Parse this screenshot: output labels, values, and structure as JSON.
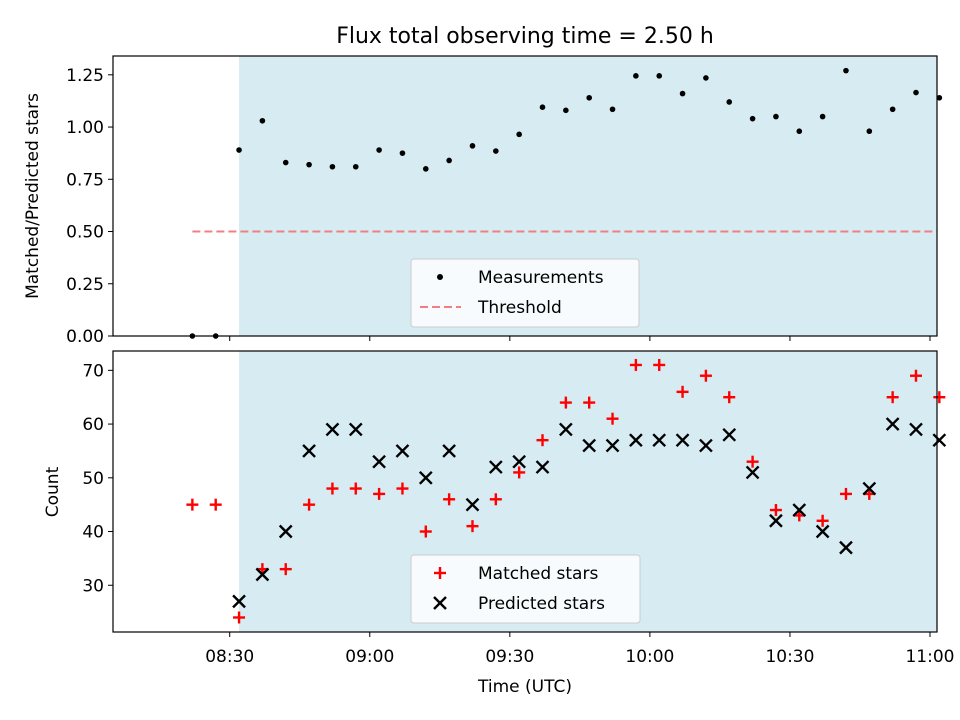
{
  "chart_data": [
    {
      "type": "scatter",
      "title": "Flux total observing time = 2.50 h",
      "xlabel": "",
      "ylabel": "Matched/Predicted stars",
      "ylim": [
        0,
        1.34
      ],
      "yticks": [
        "0.00",
        "0.25",
        "0.50",
        "0.75",
        "1.00",
        "1.25"
      ],
      "shaded_span_minutes": [
        512,
        662
      ],
      "threshold": {
        "name": "Threshold",
        "value": 0.5,
        "x_range": [
          502,
          662
        ],
        "color": "#f08080"
      },
      "series": [
        {
          "name": "Measurements",
          "marker": "dot",
          "color": "#000000",
          "x": [
            502,
            507,
            512,
            517,
            522,
            527,
            532,
            537,
            542,
            547,
            552,
            557,
            562,
            567,
            572,
            577,
            582,
            587,
            592,
            597,
            602,
            607,
            612,
            617,
            622,
            627,
            632,
            637,
            642,
            647,
            652,
            657,
            662
          ],
          "y": [
            0.0,
            0.0,
            0.89,
            1.03,
            0.83,
            0.82,
            0.81,
            0.81,
            0.89,
            0.875,
            0.8,
            0.84,
            0.91,
            0.885,
            0.965,
            1.095,
            1.08,
            1.14,
            1.085,
            1.245,
            1.245,
            1.16,
            1.235,
            1.12,
            1.04,
            1.05,
            0.98,
            1.05,
            1.27,
            0.98,
            1.085,
            1.165,
            1.14
          ]
        }
      ],
      "legend": {
        "placement": "bottom-center",
        "entries": [
          "Measurements",
          "Threshold"
        ]
      }
    },
    {
      "type": "scatter",
      "title": "",
      "xlabel": "Time (UTC)",
      "ylabel": "Count",
      "ylim": [
        21.3,
        73.6
      ],
      "yticks": [
        "30",
        "40",
        "50",
        "60",
        "70"
      ],
      "xlim": [
        485,
        661.5
      ],
      "xticks": [
        "08:30",
        "09:00",
        "09:30",
        "10:00",
        "10:30",
        "11:00"
      ],
      "shaded_span_minutes": [
        512,
        662
      ],
      "series": [
        {
          "name": "Matched stars",
          "marker": "plus",
          "color": "#ff0000",
          "x": [
            502,
            507,
            512,
            517,
            522,
            527,
            532,
            537,
            542,
            547,
            552,
            557,
            562,
            567,
            572,
            577,
            582,
            587,
            592,
            597,
            602,
            607,
            612,
            617,
            622,
            627,
            632,
            637,
            642,
            647,
            652,
            657,
            662
          ],
          "y": [
            45,
            45,
            24,
            33,
            33,
            45,
            48,
            48,
            47,
            48,
            40,
            46,
            41,
            46,
            51,
            57,
            64,
            64,
            61,
            71,
            71,
            66,
            69,
            65,
            53,
            44,
            43,
            42,
            47,
            47,
            65,
            69,
            65
          ]
        },
        {
          "name": "Predicted stars",
          "marker": "x",
          "color": "#000000",
          "x": [
            512,
            517,
            522,
            527,
            532,
            537,
            542,
            547,
            552,
            557,
            562,
            567,
            572,
            577,
            582,
            587,
            592,
            597,
            602,
            607,
            612,
            617,
            622,
            627,
            632,
            637,
            642,
            647,
            652,
            657,
            662
          ],
          "y": [
            27,
            32,
            40,
            55,
            59,
            59,
            53,
            55,
            50,
            55,
            45,
            52,
            53,
            52,
            59,
            56,
            56,
            57,
            57,
            57,
            56,
            58,
            51,
            42,
            44,
            40,
            37,
            48,
            60,
            59,
            57
          ]
        }
      ],
      "legend": {
        "placement": "bottom-center",
        "entries": [
          "Matched stars",
          "Predicted stars"
        ]
      }
    }
  ]
}
